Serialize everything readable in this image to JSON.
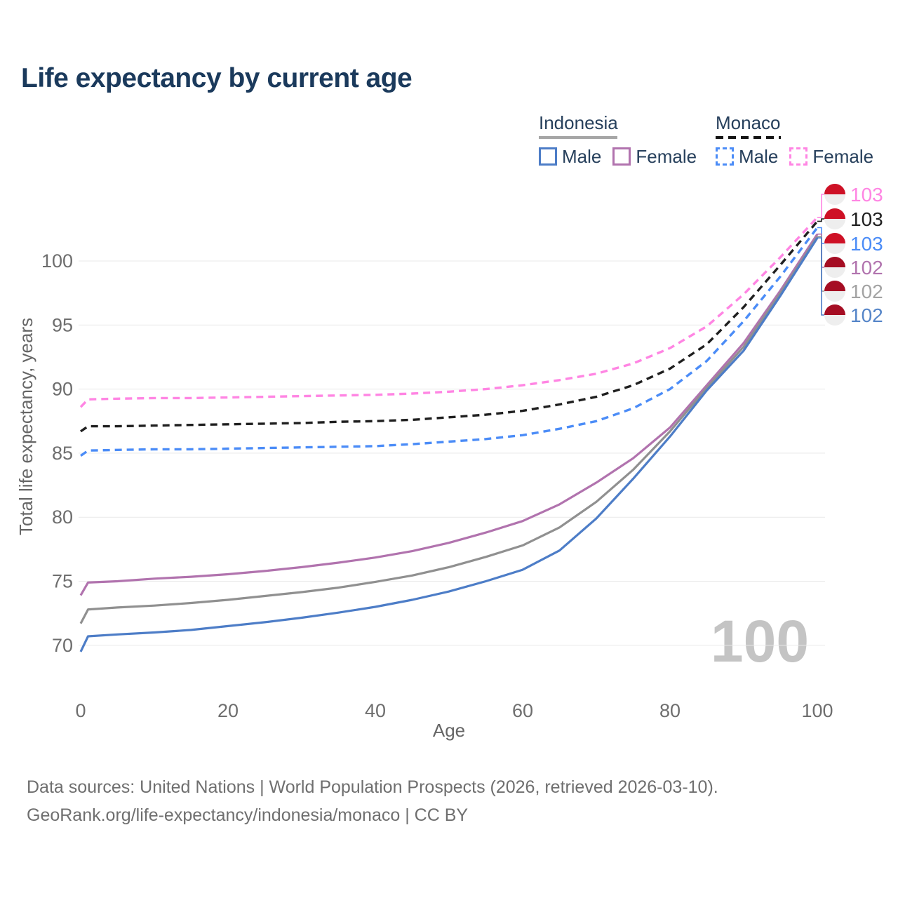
{
  "title": "Life expectancy by current age",
  "legend": {
    "groups": [
      {
        "country": "Indonesia",
        "underline_color": "#a6a6a6",
        "underline_style": "solid",
        "underline_width": 112,
        "items": [
          {
            "label": "Male",
            "color": "#4d7dc7",
            "dashed": false
          },
          {
            "label": "Female",
            "color": "#b173ae",
            "dashed": false
          }
        ]
      },
      {
        "country": "Monaco",
        "underline_color": "#141414",
        "underline_style": "dashed",
        "underline_width": 93,
        "items": [
          {
            "label": "Male",
            "color": "#4b8cf7",
            "dashed": true
          },
          {
            "label": "Female",
            "color": "#ff85e3",
            "dashed": true
          }
        ]
      }
    ]
  },
  "chart_data": {
    "type": "line",
    "title": "Life expectancy by current age",
    "xlabel": "Age",
    "ylabel": "Total life expectancy, years",
    "xlim": [
      0,
      100
    ],
    "ylim": [
      69,
      104
    ],
    "x_ticks": [
      0,
      20,
      40,
      60,
      80,
      100
    ],
    "y_ticks": [
      70,
      75,
      80,
      85,
      90,
      95,
      100
    ],
    "grid": "horizontal",
    "watermark": "100",
    "legend_position": "top-right",
    "series": [
      {
        "id": "monaco-female",
        "name": "Monaco Female",
        "color": "#ff85e3",
        "dashed": true,
        "end_label": "103",
        "label_color": "#ff85e3",
        "flag": "monaco",
        "points": [
          [
            0,
            88.6
          ],
          [
            1,
            89.2
          ],
          [
            5,
            89.25
          ],
          [
            10,
            89.3
          ],
          [
            15,
            89.3
          ],
          [
            20,
            89.35
          ],
          [
            25,
            89.4
          ],
          [
            30,
            89.45
          ],
          [
            35,
            89.5
          ],
          [
            40,
            89.55
          ],
          [
            45,
            89.65
          ],
          [
            50,
            89.8
          ],
          [
            55,
            90.0
          ],
          [
            60,
            90.3
          ],
          [
            65,
            90.7
          ],
          [
            70,
            91.2
          ],
          [
            75,
            92.0
          ],
          [
            80,
            93.2
          ],
          [
            85,
            94.9
          ],
          [
            90,
            97.4
          ],
          [
            95,
            100.3
          ],
          [
            100,
            103.4
          ]
        ]
      },
      {
        "id": "monaco-both",
        "name": "Monaco Both sexes",
        "color": "#1f1f1f",
        "dashed": true,
        "end_label": "103",
        "label_color": "#1f1f1f",
        "flag": "monaco",
        "points": [
          [
            0,
            86.7
          ],
          [
            1,
            87.1
          ],
          [
            5,
            87.1
          ],
          [
            10,
            87.15
          ],
          [
            15,
            87.2
          ],
          [
            20,
            87.25
          ],
          [
            25,
            87.3
          ],
          [
            30,
            87.35
          ],
          [
            35,
            87.45
          ],
          [
            40,
            87.5
          ],
          [
            45,
            87.6
          ],
          [
            50,
            87.8
          ],
          [
            55,
            88.0
          ],
          [
            60,
            88.3
          ],
          [
            65,
            88.8
          ],
          [
            70,
            89.4
          ],
          [
            75,
            90.3
          ],
          [
            80,
            91.6
          ],
          [
            85,
            93.5
          ],
          [
            90,
            96.4
          ],
          [
            95,
            99.7
          ],
          [
            100,
            103.1
          ]
        ]
      },
      {
        "id": "monaco-male",
        "name": "Monaco Male",
        "color": "#4b8cf7",
        "dashed": true,
        "end_label": "103",
        "label_color": "#4b8cf7",
        "flag": "monaco",
        "points": [
          [
            0,
            84.8
          ],
          [
            1,
            85.2
          ],
          [
            5,
            85.25
          ],
          [
            10,
            85.3
          ],
          [
            15,
            85.3
          ],
          [
            20,
            85.35
          ],
          [
            25,
            85.4
          ],
          [
            30,
            85.45
          ],
          [
            35,
            85.5
          ],
          [
            40,
            85.55
          ],
          [
            45,
            85.7
          ],
          [
            50,
            85.9
          ],
          [
            55,
            86.1
          ],
          [
            60,
            86.4
          ],
          [
            65,
            86.9
          ],
          [
            70,
            87.5
          ],
          [
            75,
            88.5
          ],
          [
            80,
            90.0
          ],
          [
            85,
            92.2
          ],
          [
            90,
            95.3
          ],
          [
            95,
            98.8
          ],
          [
            100,
            102.6
          ]
        ]
      },
      {
        "id": "indonesia-female",
        "name": "Indonesia Female",
        "color": "#b173ae",
        "dashed": false,
        "end_label": "102",
        "label_color": "#b173ae",
        "flag": "indonesia",
        "points": [
          [
            0,
            73.9
          ],
          [
            1,
            74.9
          ],
          [
            5,
            75.0
          ],
          [
            10,
            75.2
          ],
          [
            15,
            75.35
          ],
          [
            20,
            75.55
          ],
          [
            25,
            75.8
          ],
          [
            30,
            76.1
          ],
          [
            35,
            76.45
          ],
          [
            40,
            76.85
          ],
          [
            45,
            77.35
          ],
          [
            50,
            78.0
          ],
          [
            55,
            78.8
          ],
          [
            60,
            79.7
          ],
          [
            65,
            81.0
          ],
          [
            70,
            82.7
          ],
          [
            75,
            84.6
          ],
          [
            80,
            87.0
          ],
          [
            85,
            90.3
          ],
          [
            90,
            93.6
          ],
          [
            95,
            97.7
          ],
          [
            100,
            102.1
          ]
        ]
      },
      {
        "id": "indonesia-both",
        "name": "Indonesia Both sexes",
        "color": "#909090",
        "dashed": false,
        "end_label": "102",
        "label_color": "#a3a3a3",
        "flag": "indonesia",
        "points": [
          [
            0,
            71.7
          ],
          [
            1,
            72.8
          ],
          [
            5,
            72.95
          ],
          [
            10,
            73.1
          ],
          [
            15,
            73.3
          ],
          [
            20,
            73.55
          ],
          [
            25,
            73.85
          ],
          [
            30,
            74.15
          ],
          [
            35,
            74.5
          ],
          [
            40,
            74.95
          ],
          [
            45,
            75.45
          ],
          [
            50,
            76.1
          ],
          [
            55,
            76.9
          ],
          [
            60,
            77.8
          ],
          [
            65,
            79.2
          ],
          [
            70,
            81.2
          ],
          [
            75,
            83.7
          ],
          [
            80,
            86.7
          ],
          [
            85,
            90.1
          ],
          [
            90,
            93.3
          ],
          [
            95,
            97.5
          ],
          [
            100,
            101.9
          ]
        ]
      },
      {
        "id": "indonesia-male",
        "name": "Indonesia Male",
        "color": "#4d7dc7",
        "dashed": false,
        "end_label": "102",
        "label_color": "#5585c8",
        "flag": "indonesia",
        "points": [
          [
            0,
            69.5
          ],
          [
            1,
            70.7
          ],
          [
            5,
            70.85
          ],
          [
            10,
            71.0
          ],
          [
            15,
            71.2
          ],
          [
            20,
            71.5
          ],
          [
            25,
            71.8
          ],
          [
            30,
            72.15
          ],
          [
            35,
            72.55
          ],
          [
            40,
            73.0
          ],
          [
            45,
            73.55
          ],
          [
            50,
            74.2
          ],
          [
            55,
            75.0
          ],
          [
            60,
            75.9
          ],
          [
            65,
            77.4
          ],
          [
            70,
            79.9
          ],
          [
            75,
            83.0
          ],
          [
            80,
            86.3
          ],
          [
            85,
            89.9
          ],
          [
            90,
            93.0
          ],
          [
            95,
            97.3
          ],
          [
            100,
            101.8
          ]
        ]
      }
    ]
  },
  "flag_colors": {
    "monaco_red": "#ce1126",
    "indonesia_red": "#a50d23",
    "flag_white": "#eeeeee"
  },
  "style": {
    "grid_color": "#e9e9e9",
    "tick_color": "#6e6e6e",
    "axis_title_color": "#666666",
    "watermark_color": "#c4c4c4"
  },
  "footer": {
    "line1": "Data sources: United Nations | World Population Prospects (2026, retrieved 2026-03-10).",
    "line2": "GeoRank.org/life-expectancy/indonesia/monaco | CC BY"
  }
}
